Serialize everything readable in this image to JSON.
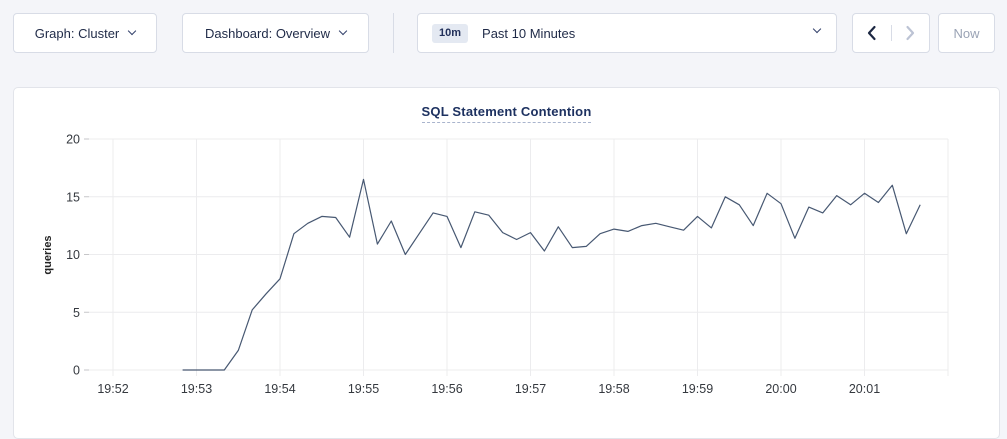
{
  "page": {
    "background": "#f4f5f9",
    "panel_background": "#ffffff"
  },
  "toolbar": {
    "graph_label": "Graph: Cluster",
    "dashboard_label": "Dashboard: Overview",
    "time_badge": "10m",
    "time_label": "Past 10 Minutes",
    "now_label": "Now"
  },
  "icons": {
    "dropdown_caret": "chevron-down",
    "prev": "chevron-left",
    "next": "chevron-right"
  },
  "colors": {
    "line": "#475872",
    "grid": "#ececee",
    "tick_text": "#35393f",
    "title": "#1d3160",
    "disabled": "#bcc3d4",
    "enabled_arrow": "#1c2742"
  },
  "chart_data": {
    "type": "line",
    "title": "SQL Statement Contention",
    "xlabel": "",
    "ylabel": "queries",
    "ylim": [
      0,
      20
    ],
    "yticks": [
      0,
      5,
      10,
      15,
      20
    ],
    "xticks": [
      "19:52",
      "19:53",
      "19:54",
      "19:55",
      "19:56",
      "19:57",
      "19:58",
      "19:59",
      "20:00",
      "20:01"
    ],
    "x_axis_range": [
      "19:51:45",
      "20:02:00"
    ],
    "grid": true,
    "legend_position": "none",
    "series": [
      {
        "name": "queries",
        "color": "#475872",
        "start_time": "19:52:50",
        "interval_seconds": 10,
        "values": [
          0,
          0,
          0,
          0,
          1.7,
          5.2,
          6.6,
          7.9,
          11.8,
          12.7,
          13.3,
          13.2,
          11.5,
          16.5,
          10.9,
          12.9,
          10.0,
          11.8,
          13.6,
          13.3,
          10.6,
          13.7,
          13.4,
          11.9,
          11.3,
          11.9,
          10.3,
          12.4,
          10.6,
          10.7,
          11.8,
          12.2,
          12.0,
          12.5,
          12.7,
          12.4,
          12.1,
          13.3,
          12.3,
          15.0,
          14.3,
          12.5,
          15.3,
          14.4,
          11.4,
          14.1,
          13.6,
          15.1,
          14.3,
          15.3,
          14.5,
          16.0,
          11.8,
          14.3
        ]
      }
    ]
  }
}
